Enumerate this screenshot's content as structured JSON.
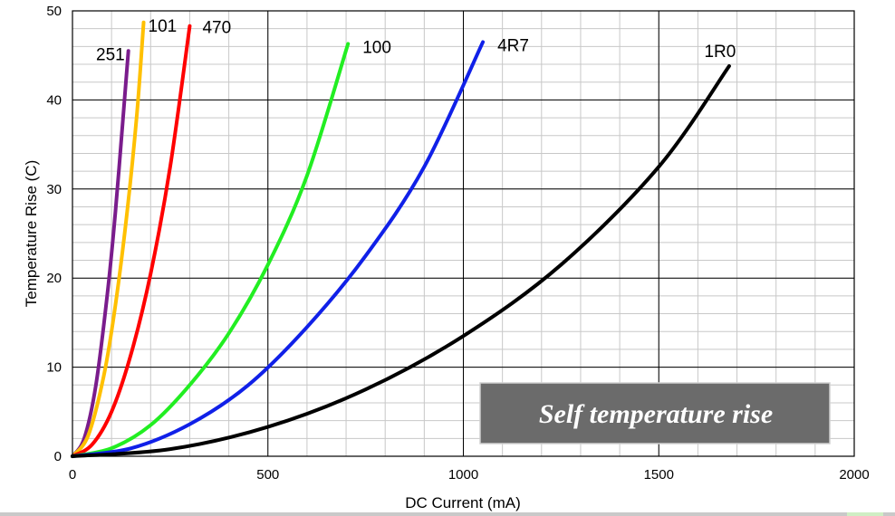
{
  "chart_data": {
    "type": "line",
    "title": "",
    "xlabel": "DC Current (mA)",
    "ylabel": "Temperature Rise  (C)",
    "xlim": [
      0,
      2000
    ],
    "ylim": [
      0,
      50
    ],
    "xticks": [
      0,
      500,
      1000,
      1500,
      2000
    ],
    "yticks": [
      0,
      10,
      20,
      30,
      40,
      50
    ],
    "grid": true,
    "legend": "none (series labeled at line ends)",
    "annotation": "Self temperature rise",
    "series": [
      {
        "name": "251",
        "color": "#7a1c8c",
        "x": [
          0,
          30,
          60,
          90,
          110,
          130,
          143
        ],
        "y": [
          0,
          2.0,
          8.0,
          18.5,
          27.5,
          38.3,
          45.5
        ]
      },
      {
        "name": "101",
        "color": "#ffc000",
        "x": [
          0,
          40,
          80,
          110,
          140,
          165,
          182
        ],
        "y": [
          0,
          2.3,
          9.0,
          17.0,
          27.5,
          38.5,
          48.7
        ]
      },
      {
        "name": "470",
        "color": "#ff0000",
        "x": [
          0,
          50,
          100,
          150,
          200,
          250,
          300
        ],
        "y": [
          0,
          1.3,
          5.0,
          11.5,
          20.5,
          32.5,
          48.3
        ]
      },
      {
        "name": "100",
        "color": "#22ee22",
        "x": [
          0,
          100,
          200,
          300,
          400,
          500,
          600,
          705
        ],
        "y": [
          0,
          0.9,
          3.5,
          8.0,
          13.8,
          21.5,
          31.5,
          46.3
        ]
      },
      {
        "name": "4R7",
        "color": "#1020e8",
        "x": [
          0,
          150,
          300,
          450,
          600,
          750,
          900,
          1050
        ],
        "y": [
          0,
          0.9,
          3.6,
          8.0,
          14.5,
          22.5,
          32.5,
          46.5
        ]
      },
      {
        "name": "1R0",
        "color": "#000000",
        "x": [
          0,
          250,
          500,
          750,
          1000,
          1250,
          1500,
          1680
        ],
        "y": [
          0,
          0.8,
          3.3,
          7.5,
          13.5,
          21.5,
          32.5,
          43.8
        ]
      }
    ]
  }
}
